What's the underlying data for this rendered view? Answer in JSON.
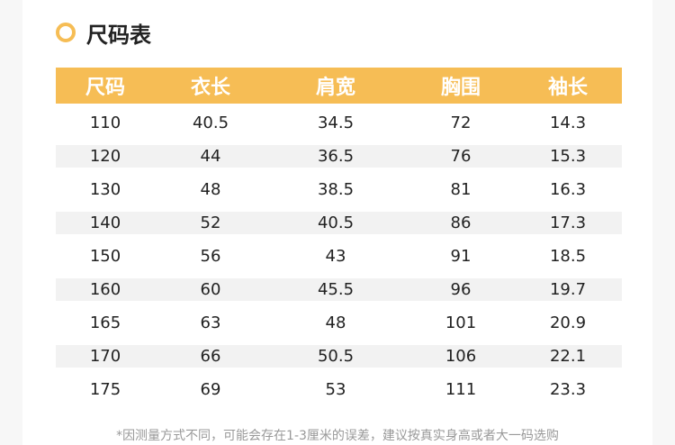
{
  "title": "尺码表",
  "accent": "#f6bd55",
  "headers": [
    "尺码",
    "衣长",
    "肩宽",
    "胸围",
    "袖长"
  ],
  "rows": [
    [
      "110",
      "40.5",
      "34.5",
      "72",
      "14.3"
    ],
    [
      "120",
      "44",
      "36.5",
      "76",
      "15.3"
    ],
    [
      "130",
      "48",
      "38.5",
      "81",
      "16.3"
    ],
    [
      "140",
      "52",
      "40.5",
      "86",
      "17.3"
    ],
    [
      "150",
      "56",
      "43",
      "91",
      "18.5"
    ],
    [
      "160",
      "60",
      "45.5",
      "96",
      "19.7"
    ],
    [
      "165",
      "63",
      "48",
      "101",
      "20.9"
    ],
    [
      "170",
      "66",
      "50.5",
      "106",
      "22.1"
    ],
    [
      "175",
      "69",
      "53",
      "111",
      "23.3"
    ]
  ],
  "note": "*因测量方式不同，可能会存在1-3厘米的误差，建议按真实身高或者大一码选购"
}
